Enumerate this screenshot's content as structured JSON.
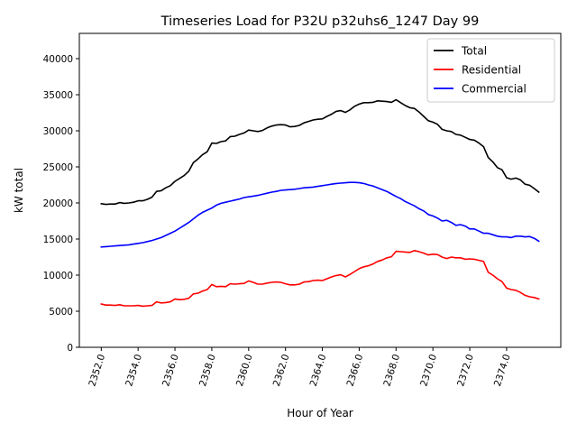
{
  "chart_data": {
    "type": "line",
    "title": "Timeseries Load for P32U p32uhs6_1247  Day 99",
    "xlabel": "Hour of Year",
    "ylabel": "kW total",
    "xlim": [
      2350.81,
      2376.94
    ],
    "ylim": [
      0,
      43500
    ],
    "grid": false,
    "legend_position": "top-right",
    "x_start": 2352.0,
    "x_step": 0.25,
    "xticks": [
      2352,
      2354,
      2356,
      2358,
      2360,
      2362,
      2364,
      2366,
      2368,
      2370,
      2372,
      2374
    ],
    "xtick_labels": [
      "2352.0",
      "2354.0",
      "2356.0",
      "2358.0",
      "2360.0",
      "2362.0",
      "2364.0",
      "2366.0",
      "2368.0",
      "2370.0",
      "2372.0",
      "2374.0"
    ],
    "yticks": [
      0,
      5000,
      10000,
      15000,
      20000,
      25000,
      30000,
      35000,
      40000
    ],
    "ytick_labels": [
      "0",
      "5000",
      "10000",
      "15000",
      "20000",
      "25000",
      "30000",
      "35000",
      "40000"
    ],
    "series": [
      {
        "name": "Total",
        "color": "#000000",
        "values": [
          19900,
          19800,
          19850,
          19850,
          20050,
          19950,
          20000,
          20100,
          20300,
          20300,
          20500,
          20800,
          21600,
          21700,
          22100,
          22400,
          23000,
          23400,
          23800,
          24400,
          25600,
          26100,
          26700,
          27100,
          28300,
          28250,
          28500,
          28600,
          29200,
          29250,
          29500,
          29700,
          30100,
          30000,
          29900,
          30050,
          30400,
          30650,
          30800,
          30850,
          30800,
          30550,
          30600,
          30750,
          31100,
          31300,
          31500,
          31600,
          31650,
          32000,
          32300,
          32700,
          32800,
          32550,
          32900,
          33400,
          33700,
          33900,
          33900,
          33950,
          34150,
          34100,
          34050,
          33950,
          34300,
          33900,
          33500,
          33200,
          33100,
          32600,
          32000,
          31400,
          31200,
          30900,
          30200,
          30000,
          29900,
          29500,
          29400,
          29100,
          28800,
          28700,
          28300,
          27800,
          26300,
          25700,
          24900,
          24600,
          23500,
          23300,
          23450,
          23200,
          22600,
          22450,
          22000,
          21500
        ]
      },
      {
        "name": "Residential",
        "color": "#ff0000",
        "values": [
          6000,
          5850,
          5850,
          5800,
          5900,
          5750,
          5750,
          5750,
          5800,
          5700,
          5750,
          5800,
          6300,
          6150,
          6200,
          6300,
          6700,
          6600,
          6650,
          6800,
          7400,
          7500,
          7800,
          8000,
          8700,
          8400,
          8450,
          8400,
          8800,
          8750,
          8800,
          8850,
          9200,
          9000,
          8750,
          8750,
          8900,
          9000,
          9050,
          9000,
          8800,
          8650,
          8650,
          8750,
          9050,
          9100,
          9250,
          9300,
          9250,
          9500,
          9750,
          9950,
          10050,
          9750,
          10100,
          10500,
          10900,
          11150,
          11300,
          11550,
          11900,
          12100,
          12400,
          12550,
          13300,
          13250,
          13200,
          13150,
          13400,
          13250,
          13050,
          12800,
          12900,
          12850,
          12500,
          12300,
          12500,
          12400,
          12400,
          12200,
          12250,
          12200,
          12050,
          11900,
          10400,
          10000,
          9500,
          9100,
          8200,
          8000,
          7900,
          7600,
          7200,
          7000,
          6900,
          6700
        ]
      },
      {
        "name": "Commercial",
        "color": "#0000ff",
        "values": [
          13900,
          13950,
          14000,
          14050,
          14100,
          14150,
          14200,
          14300,
          14400,
          14500,
          14650,
          14800,
          15000,
          15200,
          15500,
          15800,
          16100,
          16500,
          16900,
          17300,
          17800,
          18300,
          18700,
          19000,
          19300,
          19700,
          19950,
          20100,
          20250,
          20400,
          20550,
          20750,
          20850,
          20950,
          21050,
          21200,
          21350,
          21500,
          21600,
          21750,
          21800,
          21850,
          21900,
          22000,
          22100,
          22150,
          22200,
          22300,
          22400,
          22500,
          22600,
          22700,
          22750,
          22800,
          22850,
          22850,
          22800,
          22700,
          22500,
          22350,
          22100,
          21850,
          21600,
          21250,
          20900,
          20600,
          20200,
          19900,
          19600,
          19200,
          18900,
          18400,
          18200,
          17900,
          17500,
          17600,
          17300,
          16900,
          17000,
          16800,
          16400,
          16400,
          16100,
          15800,
          15800,
          15600,
          15400,
          15300,
          15300,
          15200,
          15400,
          15400,
          15300,
          15350,
          15100,
          14700
        ]
      }
    ]
  }
}
